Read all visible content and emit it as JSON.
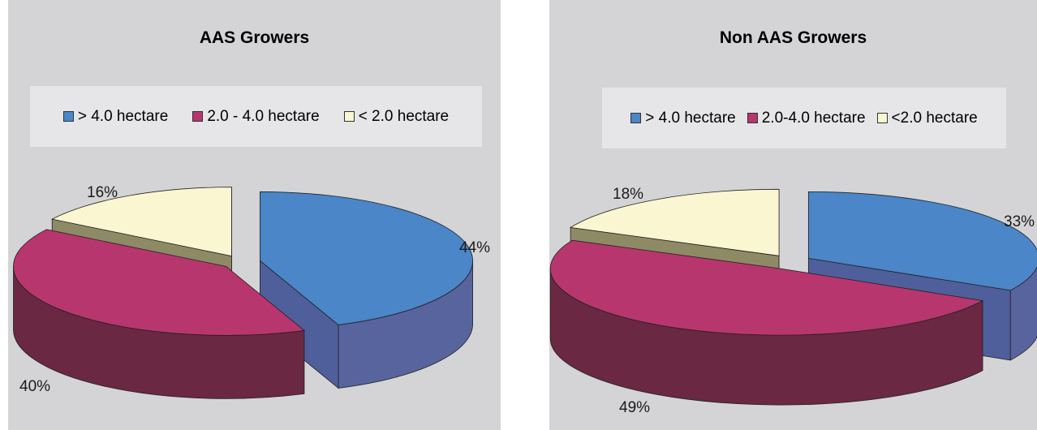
{
  "chart_data": [
    {
      "type": "pie",
      "title": "AAS Growers",
      "categories": [
        "> 4.0 hectare",
        "2.0 - 4.0 hectare",
        "< 2.0 hectare"
      ],
      "values": [
        44,
        40,
        16
      ],
      "value_labels": [
        "44%",
        "40%",
        "16%"
      ],
      "colors": [
        "#4a86c8",
        "#b8366e",
        "#faf6d2"
      ],
      "legend_placement": "top",
      "exploded": true
    },
    {
      "type": "pie",
      "title": "Non AAS Growers",
      "categories": [
        "> 4.0 hectare",
        "2.0-4.0 hectare",
        "<2.0 hectare"
      ],
      "values": [
        33,
        49,
        18
      ],
      "value_labels": [
        "33%",
        "49%",
        "18%"
      ],
      "colors": [
        "#4a86c8",
        "#b8366e",
        "#faf6d2"
      ],
      "legend_placement": "top",
      "exploded": true
    }
  ]
}
